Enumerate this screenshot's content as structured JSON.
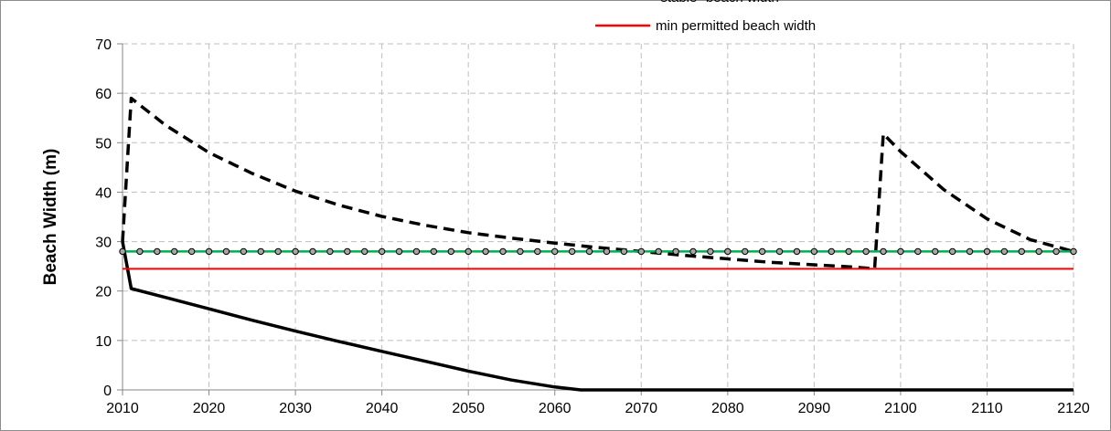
{
  "chart_data": {
    "type": "line",
    "title": "",
    "xlabel": "",
    "ylabel": "Beach Width (m)",
    "xlim": [
      2010,
      2120
    ],
    "ylim": [
      0,
      70
    ],
    "xticks": [
      2010,
      2020,
      2030,
      2040,
      2050,
      2060,
      2070,
      2080,
      2090,
      2100,
      2110,
      2120
    ],
    "yticks": [
      0,
      10,
      20,
      30,
      40,
      50,
      60,
      70
    ],
    "grid": true,
    "legend_position": "top-right",
    "series": [
      {
        "key": "solid",
        "style": "solid",
        "color": "#000000",
        "x": [
          2010,
          2011,
          2015,
          2020,
          2025,
          2030,
          2035,
          2040,
          2045,
          2050,
          2055,
          2060,
          2063,
          2070,
          2080,
          2090,
          2100,
          2110,
          2120
        ],
        "y": [
          30,
          20.5,
          18.7,
          16.4,
          14.1,
          11.9,
          9.8,
          7.8,
          5.8,
          3.8,
          2.0,
          0.6,
          0,
          0,
          0,
          0,
          0,
          0,
          0
        ]
      },
      {
        "key": "dashed",
        "style": "dashed",
        "color": "#000000",
        "x": [
          2010,
          2011,
          2015,
          2020,
          2025,
          2030,
          2035,
          2040,
          2045,
          2050,
          2055,
          2060,
          2065,
          2070,
          2075,
          2080,
          2085,
          2090,
          2095,
          2097,
          2098,
          2100,
          2105,
          2110,
          2115,
          2120
        ],
        "y": [
          30,
          59,
          53.5,
          48,
          43.8,
          40.2,
          37.4,
          35.1,
          33.3,
          31.8,
          30.7,
          29.7,
          28.8,
          28.0,
          27.2,
          26.5,
          25.8,
          25.3,
          24.8,
          24.5,
          51.8,
          48.2,
          40.5,
          34.6,
          30.4,
          28.0
        ]
      },
      {
        "name": "\"stable\" beach width",
        "key": "stable",
        "style": "solid-markers",
        "color": "#00b050",
        "x_start": 2010,
        "x_end": 2120,
        "y": 28,
        "marker_step": 2
      },
      {
        "name": "min permitted beach width",
        "key": "min",
        "style": "solid",
        "color": "#ff0000",
        "x_start": 2010,
        "x_end": 2120,
        "y": 24.5
      }
    ],
    "legend": [
      {
        "label": "\"stable\" beach width",
        "color": "#00b050"
      },
      {
        "label": "min permitted beach width",
        "color": "#ff0000"
      }
    ]
  }
}
